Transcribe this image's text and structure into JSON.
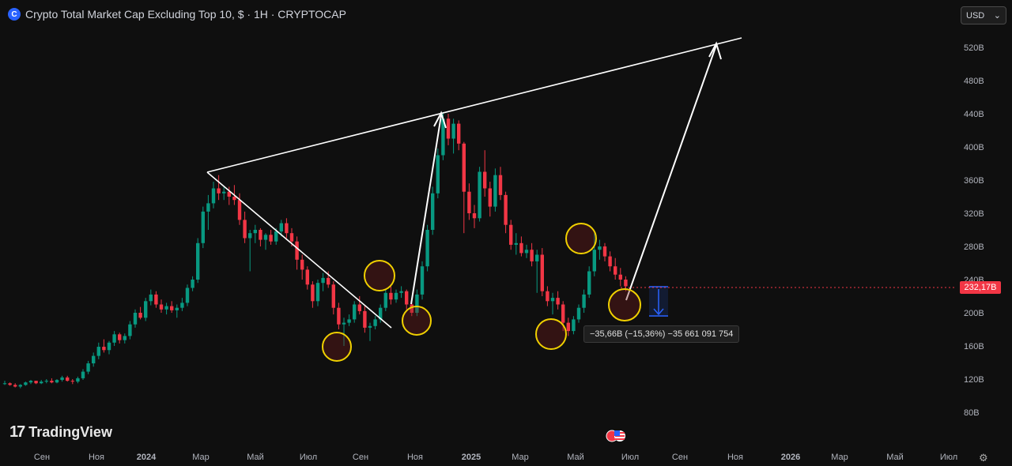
{
  "header": {
    "title": "Crypto Total Market Cap Excluding Top 10, $ · 1H · CRYPTOCAP",
    "currency_select": "USD"
  },
  "branding": {
    "name": "TradingView"
  },
  "current_price": "232,17B",
  "measure_label": "−35,66B (−15,36%) −35 661 091 754",
  "colors": {
    "up": "#089981",
    "down": "#f23645",
    "background": "#0f0f0f",
    "annotation": "#ffffff",
    "circle": "#f0d000",
    "measure_arrow": "#2962ff"
  },
  "chart_data": {
    "type": "candlestick",
    "title": "Crypto Total Market Cap Excluding Top 10, $ · 1H · CRYPTOCAP",
    "y_unit": "B",
    "ylim": [
      60,
      540
    ],
    "y_ticks": [
      "80B",
      "120B",
      "160B",
      "200B",
      "240B",
      "280B",
      "320B",
      "360B",
      "400B",
      "440B",
      "480B",
      "520B"
    ],
    "x_ticks": [
      "Сен",
      "Ноя",
      "2024",
      "Мар",
      "Май",
      "Июл",
      "Сен",
      "Ноя",
      "2025",
      "Мар",
      "Май",
      "Июл",
      "Сен",
      "Ноя",
      "2026",
      "Мар",
      "Май",
      "Июл"
    ],
    "grid": false,
    "candles": [
      [
        0,
        114,
        118,
        113,
        115
      ],
      [
        1,
        115,
        116,
        112,
        113
      ],
      [
        2,
        113,
        115,
        110,
        111
      ],
      [
        3,
        111,
        114,
        109,
        113
      ],
      [
        4,
        113,
        117,
        112,
        116
      ],
      [
        5,
        116,
        119,
        114,
        118
      ],
      [
        6,
        118,
        117,
        114,
        115
      ],
      [
        7,
        115,
        119,
        114,
        117
      ],
      [
        8,
        117,
        120,
        115,
        118
      ],
      [
        9,
        118,
        121,
        115,
        116
      ],
      [
        10,
        116,
        120,
        115,
        119
      ],
      [
        11,
        119,
        124,
        117,
        122
      ],
      [
        12,
        122,
        124,
        117,
        118
      ],
      [
        13,
        118,
        120,
        114,
        117
      ],
      [
        14,
        117,
        123,
        115,
        121
      ],
      [
        15,
        121,
        132,
        119,
        129
      ],
      [
        16,
        129,
        142,
        126,
        139
      ],
      [
        17,
        139,
        152,
        135,
        148
      ],
      [
        18,
        148,
        164,
        144,
        159
      ],
      [
        19,
        159,
        168,
        152,
        155
      ],
      [
        20,
        155,
        166,
        150,
        164
      ],
      [
        21,
        164,
        178,
        160,
        174
      ],
      [
        22,
        174,
        176,
        163,
        167
      ],
      [
        23,
        167,
        175,
        163,
        172
      ],
      [
        24,
        172,
        190,
        168,
        186
      ],
      [
        25,
        186,
        204,
        182,
        200
      ],
      [
        26,
        200,
        207,
        192,
        194
      ],
      [
        27,
        194,
        218,
        190,
        214
      ],
      [
        28,
        214,
        228,
        209,
        222
      ],
      [
        29,
        222,
        226,
        206,
        210
      ],
      [
        30,
        210,
        216,
        200,
        204
      ],
      [
        31,
        204,
        212,
        198,
        208
      ],
      [
        32,
        208,
        214,
        200,
        203
      ],
      [
        33,
        203,
        210,
        194,
        206
      ],
      [
        34,
        206,
        218,
        202,
        212
      ],
      [
        35,
        212,
        234,
        208,
        230
      ],
      [
        36,
        230,
        244,
        226,
        240
      ],
      [
        37,
        240,
        290,
        236,
        284
      ],
      [
        38,
        284,
        328,
        278,
        322
      ],
      [
        39,
        322,
        342,
        300,
        332
      ],
      [
        40,
        332,
        358,
        326,
        350
      ],
      [
        41,
        350,
        366,
        336,
        344
      ],
      [
        42,
        344,
        352,
        336,
        346
      ],
      [
        43,
        346,
        352,
        330,
        340
      ],
      [
        44,
        340,
        354,
        330,
        336
      ],
      [
        45,
        336,
        344,
        306,
        312
      ],
      [
        46,
        312,
        322,
        284,
        290
      ],
      [
        47,
        290,
        300,
        250,
        296
      ],
      [
        48,
        296,
        306,
        284,
        300
      ],
      [
        49,
        300,
        302,
        280,
        288
      ],
      [
        50,
        288,
        296,
        276,
        294
      ],
      [
        51,
        294,
        300,
        282,
        286
      ],
      [
        52,
        286,
        302,
        282,
        298
      ],
      [
        53,
        298,
        312,
        292,
        308
      ],
      [
        54,
        308,
        314,
        290,
        296
      ],
      [
        55,
        296,
        302,
        280,
        286
      ],
      [
        56,
        286,
        292,
        252,
        264
      ],
      [
        57,
        264,
        270,
        240,
        252
      ],
      [
        58,
        252,
        256,
        228,
        234
      ],
      [
        59,
        234,
        238,
        206,
        214
      ],
      [
        60,
        214,
        240,
        208,
        236
      ],
      [
        61,
        236,
        248,
        226,
        242
      ],
      [
        62,
        242,
        250,
        230,
        234
      ],
      [
        63,
        234,
        238,
        198,
        206
      ],
      [
        64,
        206,
        212,
        180,
        186
      ],
      [
        65,
        186,
        194,
        160,
        188
      ],
      [
        66,
        188,
        198,
        184,
        192
      ],
      [
        67,
        192,
        214,
        188,
        210
      ],
      [
        68,
        210,
        220,
        198,
        202
      ],
      [
        69,
        202,
        208,
        176,
        182
      ],
      [
        70,
        182,
        188,
        166,
        184
      ],
      [
        71,
        184,
        196,
        180,
        192
      ],
      [
        72,
        192,
        210,
        188,
        206
      ],
      [
        73,
        206,
        228,
        202,
        224
      ],
      [
        74,
        224,
        232,
        210,
        216
      ],
      [
        75,
        216,
        228,
        212,
        224
      ],
      [
        76,
        224,
        232,
        218,
        226
      ],
      [
        77,
        226,
        228,
        204,
        210
      ],
      [
        78,
        210,
        218,
        196,
        200
      ],
      [
        79,
        200,
        228,
        196,
        222
      ],
      [
        80,
        222,
        262,
        216,
        256
      ],
      [
        81,
        256,
        306,
        250,
        300
      ],
      [
        82,
        300,
        352,
        294,
        344
      ],
      [
        83,
        344,
        398,
        338,
        390
      ],
      [
        84,
        390,
        442,
        384,
        434
      ],
      [
        85,
        434,
        440,
        402,
        410
      ],
      [
        86,
        410,
        434,
        392,
        428
      ],
      [
        87,
        428,
        432,
        396,
        404
      ],
      [
        88,
        404,
        406,
        296,
        346
      ],
      [
        89,
        346,
        356,
        312,
        320
      ],
      [
        90,
        320,
        330,
        302,
        314
      ],
      [
        91,
        314,
        376,
        310,
        370
      ],
      [
        92,
        370,
        396,
        340,
        350
      ],
      [
        93,
        350,
        358,
        316,
        328
      ],
      [
        94,
        328,
        374,
        322,
        366
      ],
      [
        95,
        366,
        376,
        336,
        342
      ],
      [
        96,
        342,
        346,
        296,
        306
      ],
      [
        97,
        306,
        312,
        276,
        282
      ],
      [
        98,
        282,
        296,
        270,
        284
      ],
      [
        99,
        284,
        292,
        268,
        272
      ],
      [
        100,
        272,
        282,
        266,
        276
      ],
      [
        101,
        276,
        284,
        256,
        262
      ],
      [
        102,
        262,
        276,
        224,
        270
      ],
      [
        103,
        270,
        278,
        220,
        226
      ],
      [
        104,
        226,
        232,
        208,
        214
      ],
      [
        105,
        214,
        224,
        198,
        218
      ],
      [
        106,
        218,
        226,
        204,
        210
      ],
      [
        107,
        210,
        214,
        178,
        188
      ],
      [
        108,
        188,
        194,
        172,
        178
      ],
      [
        109,
        178,
        196,
        174,
        192
      ],
      [
        110,
        192,
        210,
        188,
        206
      ],
      [
        111,
        206,
        228,
        200,
        222
      ],
      [
        112,
        222,
        256,
        218,
        250
      ],
      [
        113,
        250,
        296,
        244,
        276
      ],
      [
        114,
        276,
        288,
        264,
        280
      ],
      [
        115,
        280,
        284,
        262,
        268
      ],
      [
        116,
        268,
        274,
        250,
        256
      ],
      [
        117,
        256,
        266,
        240,
        246
      ],
      [
        118,
        246,
        254,
        232,
        240
      ],
      [
        119,
        240,
        244,
        226,
        232
      ]
    ],
    "annotations": {
      "lines": [
        "trend line upper",
        "descending trend line",
        "projection arrow",
        "rally arrow"
      ],
      "circles": 6,
      "measure": "−35,66B (−15,36%) −35 661 091 754"
    }
  }
}
